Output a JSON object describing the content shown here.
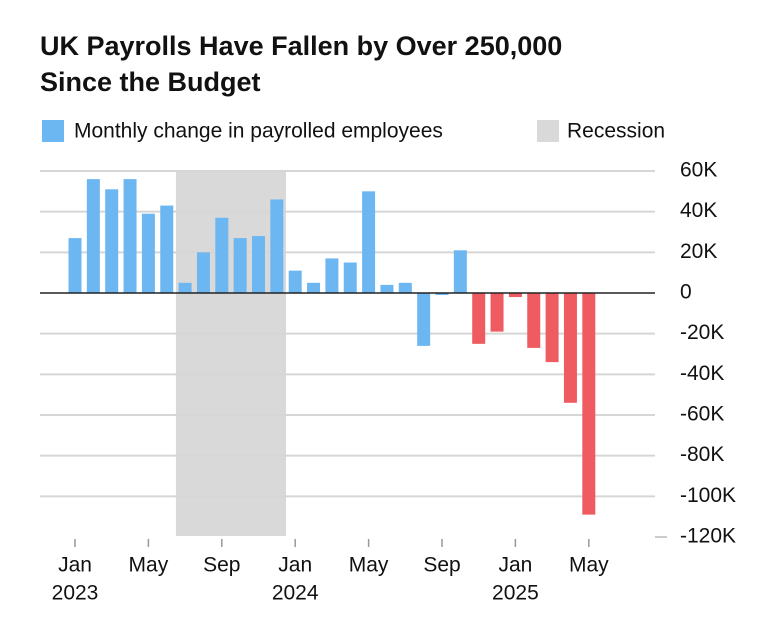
{
  "chart_data": {
    "type": "bar",
    "title": [
      "UK Payrolls Have Fallen by Over 250,000",
      "Since the Budget"
    ],
    "x": [
      "2023-01",
      "2023-02",
      "2023-03",
      "2023-04",
      "2023-05",
      "2023-06",
      "2023-07",
      "2023-08",
      "2023-09",
      "2023-10",
      "2023-11",
      "2023-12",
      "2024-01",
      "2024-02",
      "2024-03",
      "2024-04",
      "2024-05",
      "2024-06",
      "2024-07",
      "2024-08",
      "2024-09",
      "2024-10",
      "2024-11",
      "2024-12",
      "2025-01",
      "2025-02",
      "2025-03",
      "2025-04",
      "2025-05"
    ],
    "series": [
      {
        "name": "Monthly change in payrolled employees",
        "color": "#6cb7f2",
        "values": [
          27000,
          56000,
          51000,
          56000,
          39000,
          43000,
          5000,
          20000,
          37000,
          27000,
          28000,
          46000,
          11000,
          5000,
          17000,
          15000,
          50000,
          4000,
          5000,
          -26000,
          -1000,
          21000,
          -25000,
          -19000,
          -2000,
          -27000,
          -34000,
          -54000,
          -109000
        ]
      }
    ],
    "highlight": {
      "from": "2024-11",
      "color": "#ee5c62"
    },
    "recession": {
      "name": "Recession",
      "color": "#d9d9d9",
      "from": "2023-07",
      "to": "2023-12"
    },
    "ylim": [
      -120000,
      60000
    ],
    "yticks": [
      {
        "value": 60000,
        "label": "60K"
      },
      {
        "value": 40000,
        "label": "40K"
      },
      {
        "value": 20000,
        "label": "20K"
      },
      0,
      {
        "value": -20000,
        "label": "-20K"
      },
      {
        "value": -40000,
        "label": "-40K"
      },
      {
        "value": -60000,
        "label": "-60K"
      },
      {
        "value": -80000,
        "label": "-80K"
      },
      {
        "value": -100000,
        "label": "-100K"
      },
      {
        "value": -120000,
        "label": "-120K"
      }
    ],
    "xticks": [
      {
        "value": "2023-01",
        "label": "Jan",
        "year": "2023"
      },
      {
        "value": "2023-05",
        "label": "May"
      },
      {
        "value": "2023-09",
        "label": "Sep"
      },
      {
        "value": "2024-01",
        "label": "Jan",
        "year": "2024"
      },
      {
        "value": "2024-05",
        "label": "May"
      },
      {
        "value": "2024-09",
        "label": "Sep"
      },
      {
        "value": "2025-01",
        "label": "Jan",
        "year": "2025"
      },
      {
        "value": "2025-05",
        "label": "May"
      }
    ],
    "grid": true
  }
}
